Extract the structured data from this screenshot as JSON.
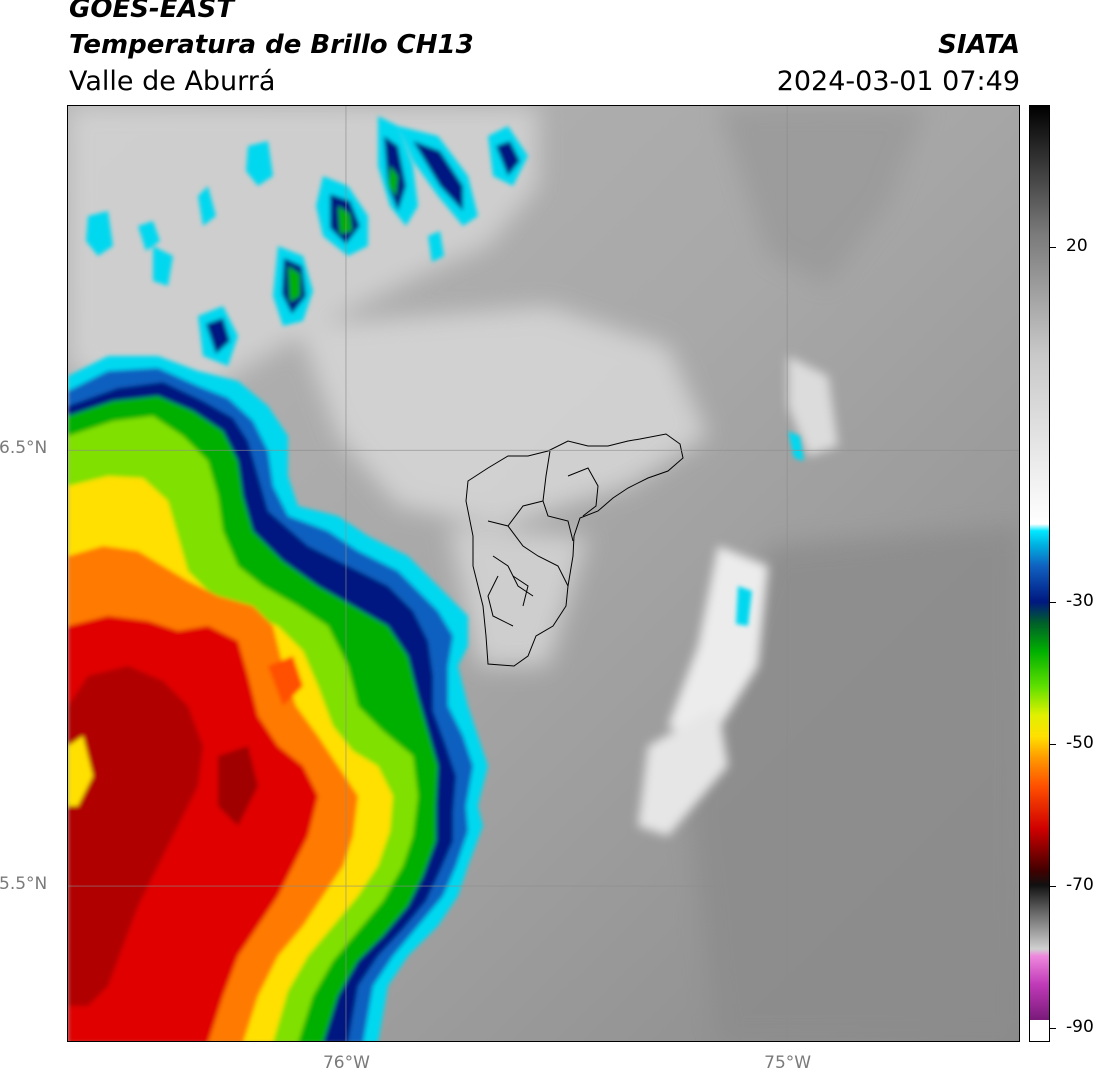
{
  "header": {
    "satellite": "GOES-EAST",
    "product": "Temperatura de Brillo CH13",
    "region": "Valle de Aburrá",
    "agency": "SIATA",
    "datetime": "2024-03-01 07:49"
  },
  "map": {
    "lon_ticks": [
      "76°W",
      "75°W"
    ],
    "lat_ticks": [
      "6.5°N",
      "5.5°N"
    ],
    "lon_tick_values": [
      -76,
      -75
    ],
    "lat_tick_values": [
      6.5,
      5.5
    ],
    "lon_range": [
      -76.63,
      -74.47
    ],
    "lat_range": [
      5.14,
      7.29
    ]
  },
  "colorbar": {
    "labels": [
      "20",
      "-30",
      "-50",
      "-70",
      "-90"
    ],
    "label_values": [
      20,
      -30,
      -50,
      -70,
      -90
    ],
    "range": [
      -92,
      40
    ],
    "stops": [
      {
        "v": -92,
        "c": "#ffffff"
      },
      {
        "v": -89,
        "c": "#ffffff"
      },
      {
        "v": -89,
        "c": "#7a1a7a"
      },
      {
        "v": -84,
        "c": "#c03ab8"
      },
      {
        "v": -80,
        "c": "#ee88dd"
      },
      {
        "v": -79,
        "c": "#d0d0d0"
      },
      {
        "v": -74,
        "c": "#6a6a6a"
      },
      {
        "v": -70,
        "c": "#111111"
      },
      {
        "v": -68,
        "c": "#400000"
      },
      {
        "v": -62,
        "c": "#d00000"
      },
      {
        "v": -56,
        "c": "#ff5000"
      },
      {
        "v": -52,
        "c": "#ff9a00"
      },
      {
        "v": -49,
        "c": "#ffe000"
      },
      {
        "v": -46,
        "c": "#e0f000"
      },
      {
        "v": -42,
        "c": "#60e000"
      },
      {
        "v": -37,
        "c": "#00b000"
      },
      {
        "v": -33,
        "c": "#00602a"
      },
      {
        "v": -30,
        "c": "#001880"
      },
      {
        "v": -25,
        "c": "#1060c0"
      },
      {
        "v": -22,
        "c": "#00b0e0"
      },
      {
        "v": -20,
        "c": "#00e8ff"
      },
      {
        "v": -19,
        "c": "#ffffff"
      },
      {
        "v": 5,
        "c": "#c8c8c8"
      },
      {
        "v": 22,
        "c": "#7a7a7a"
      },
      {
        "v": 40,
        "c": "#000000"
      }
    ]
  },
  "colors": {
    "cloud_cold": "#c80000",
    "cloud_mid": "#00c000",
    "cloud_edge": "#00d8f0",
    "boundary": "#000000",
    "grid": "#8c8c8c"
  }
}
